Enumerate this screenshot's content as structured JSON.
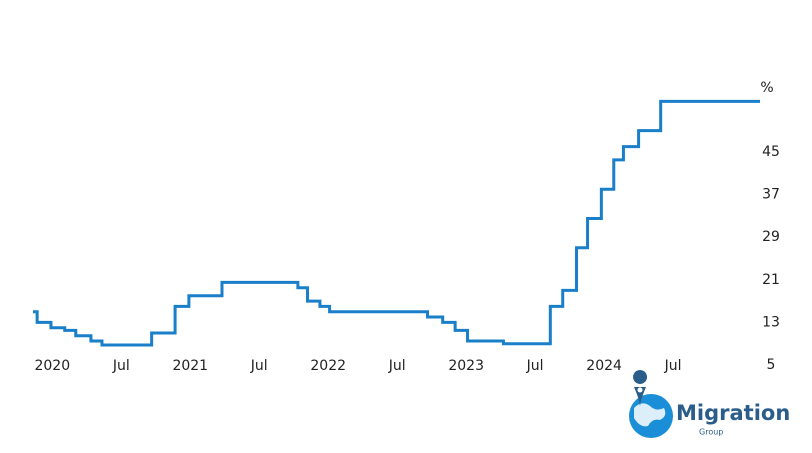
{
  "chart_data": {
    "type": "step-line",
    "unit": "%",
    "x": [
      2019.86,
      2019.89,
      2019.99,
      2020.09,
      2020.17,
      2020.28,
      2020.36,
      2020.72,
      2020.89,
      2020.99,
      2021.23,
      2021.78,
      2021.85,
      2021.94,
      2022.01,
      2022.72,
      2022.83,
      2022.92,
      2023.01,
      2023.27,
      2023.61,
      2023.7,
      2023.8,
      2023.88,
      2023.98,
      2024.07,
      2024.14,
      2024.25,
      2024.41,
      2025.13
    ],
    "values": [
      15,
      13,
      12,
      11.5,
      10.5,
      9.5,
      8.75,
      11,
      16,
      18,
      20.5,
      19.5,
      17,
      16,
      15,
      14,
      13,
      11.5,
      9.5,
      9,
      16,
      19,
      27,
      32.5,
      38,
      43.5,
      46,
      49,
      54.5,
      54.5
    ],
    "color": "#1a7fc9",
    "xlim": [
      2019.86,
      2025.13
    ],
    "xticks": [
      {
        "value": 2020,
        "label": "2020"
      },
      {
        "value": 2020.5,
        "label": "Jul"
      },
      {
        "value": 2021,
        "label": "2021"
      },
      {
        "value": 2021.5,
        "label": "Jul"
      },
      {
        "value": 2022,
        "label": "2022"
      },
      {
        "value": 2022.5,
        "label": "Jul"
      },
      {
        "value": 2023,
        "label": "2023"
      },
      {
        "value": 2023.5,
        "label": "Jul"
      },
      {
        "value": 2024,
        "label": "2024"
      },
      {
        "value": 2024.5,
        "label": "Jul"
      }
    ],
    "ylim": [
      5,
      57
    ],
    "yticks": [
      5,
      13,
      21,
      29,
      37,
      45
    ],
    "grid": false
  },
  "logo": {
    "name": "Migration",
    "sub": "Group"
  }
}
